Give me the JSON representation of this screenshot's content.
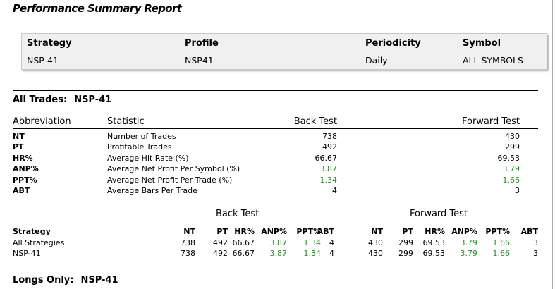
{
  "report": {
    "title": "Performance Summary Report"
  },
  "colors": {
    "green_value": "#2e8b2e",
    "box_bg": "#f0f0f0"
  },
  "info": {
    "headers": [
      "Strategy",
      "Profile",
      "Periodicity",
      "Symbol"
    ],
    "values": [
      "NSP-41",
      "NSP41",
      "Daily",
      "ALL SYMBOLS"
    ]
  },
  "all_trades": {
    "label": "All Trades:",
    "name": "NSP-41",
    "columns": [
      "Abbreviation",
      "Statistic",
      "Back Test",
      "Forward Test"
    ],
    "rows": [
      {
        "abbr": "NT",
        "stat": "Number of Trades",
        "back": "738",
        "forward": "430"
      },
      {
        "abbr": "PT",
        "stat": "Profitable Trades",
        "back": "492",
        "forward": "299"
      },
      {
        "abbr": "HR%",
        "stat": "Average Hit Rate (%)",
        "back": "66.67",
        "forward": "69.53"
      },
      {
        "abbr": "ANP%",
        "stat": "Average Net Profit Per Symbol (%)",
        "back": "3.87",
        "forward": "3.79"
      },
      {
        "abbr": "PPT%",
        "stat": "Average Net Profit Per Trade (%)",
        "back": "1.34",
        "forward": "1.66"
      },
      {
        "abbr": "ABT",
        "stat": "Average Bars Per Trade",
        "back": "4",
        "forward": "3"
      }
    ]
  },
  "comparison": {
    "back_label": "Back Test",
    "forward_label": "Forward Test",
    "strategy_label": "Strategy",
    "metric_headers": [
      "NT",
      "PT",
      "HR%",
      "ANP%",
      "PPT%",
      "ABT"
    ],
    "rows": [
      {
        "name": "All Strategies",
        "back": [
          "738",
          "492",
          "66.67",
          "3.87",
          "1.34",
          "4"
        ],
        "forward": [
          "430",
          "299",
          "69.53",
          "3.79",
          "1.66",
          "3"
        ]
      },
      {
        "name": "NSP-41",
        "back": [
          "738",
          "492",
          "66.67",
          "3.87",
          "1.34",
          "4"
        ],
        "forward": [
          "430",
          "299",
          "69.53",
          "3.79",
          "1.66",
          "3"
        ]
      }
    ]
  },
  "longs_only": {
    "label": "Longs Only:",
    "name": "NSP-41"
  }
}
